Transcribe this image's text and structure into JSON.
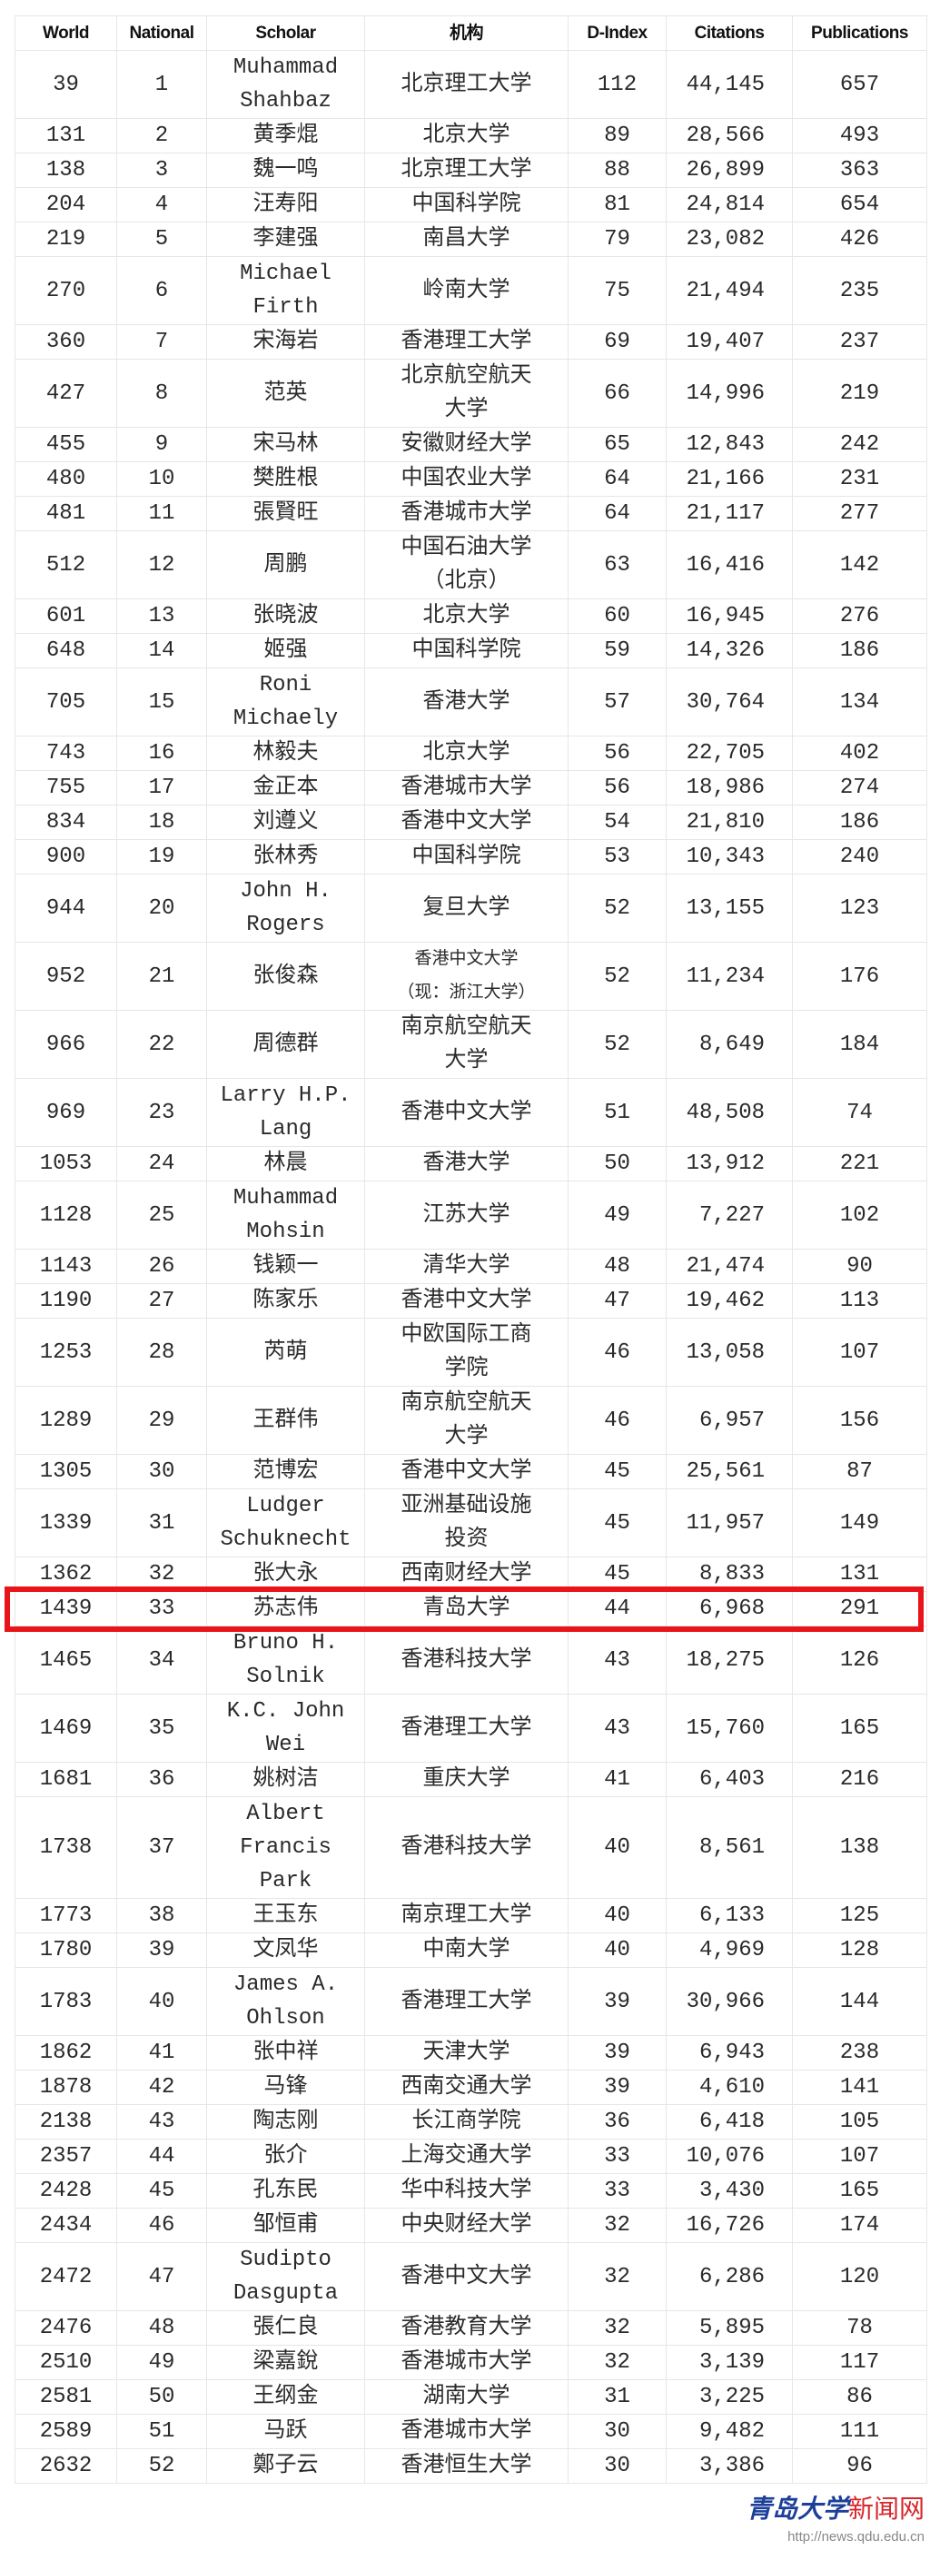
{
  "table": {
    "headers": [
      "World",
      "National",
      "Scholar",
      "机构",
      "D-Index",
      "Citations",
      "Publications"
    ],
    "rows": [
      [
        "39",
        "1",
        "Muhammad\nShahbaz",
        "北京理工大学",
        "112",
        "44,145",
        "657"
      ],
      [
        "131",
        "2",
        "黄季焜",
        "北京大学",
        "89",
        "28,566",
        "493"
      ],
      [
        "138",
        "3",
        "魏一鸣",
        "北京理工大学",
        "88",
        "26,899",
        "363"
      ],
      [
        "204",
        "4",
        "汪寿阳",
        "中国科学院",
        "81",
        "24,814",
        "654"
      ],
      [
        "219",
        "5",
        "李建强",
        "南昌大学",
        "79",
        "23,082",
        "426"
      ],
      [
        "270",
        "6",
        "Michael\nFirth",
        "岭南大学",
        "75",
        "21,494",
        "235"
      ],
      [
        "360",
        "7",
        "宋海岩",
        "香港理工大学",
        "69",
        "19,407",
        "237"
      ],
      [
        "427",
        "8",
        "范英",
        "北京航空航天\n大学",
        "66",
        "14,996",
        "219"
      ],
      [
        "455",
        "9",
        "宋马林",
        "安徽财经大学",
        "65",
        "12,843",
        "242"
      ],
      [
        "480",
        "10",
        "樊胜根",
        "中国农业大学",
        "64",
        "21,166",
        "231"
      ],
      [
        "481",
        "11",
        "張賢旺",
        "香港城市大学",
        "64",
        "21,117",
        "277"
      ],
      [
        "512",
        "12",
        "周鹏",
        "中国石油大学\n（北京）",
        "63",
        "16,416",
        "142"
      ],
      [
        "601",
        "13",
        "张晓波",
        "北京大学",
        "60",
        "16,945",
        "276"
      ],
      [
        "648",
        "14",
        "姬强",
        "中国科学院",
        "59",
        "14,326",
        "186"
      ],
      [
        "705",
        "15",
        "Roni\nMichaely",
        "香港大学",
        "57",
        "30,764",
        "134"
      ],
      [
        "743",
        "16",
        "林毅夫",
        "北京大学",
        "56",
        "22,705",
        "402"
      ],
      [
        "755",
        "17",
        "金正本",
        "香港城市大学",
        "56",
        "18,986",
        "274"
      ],
      [
        "834",
        "18",
        "刘遵义",
        "香港中文大学",
        "54",
        "21,810",
        "186"
      ],
      [
        "900",
        "19",
        "张林秀",
        "中国科学院",
        "53",
        "10,343",
        "240"
      ],
      [
        "944",
        "20",
        "John H.\nRogers",
        "复旦大学",
        "52",
        "13,155",
        "123"
      ],
      [
        "952",
        "21",
        "张俊森",
        "香港中文大学\n（现：浙江大学）",
        "52",
        "11,234",
        "176"
      ],
      [
        "966",
        "22",
        "周德群",
        "南京航空航天\n大学",
        "52",
        "8,649",
        "184"
      ],
      [
        "969",
        "23",
        "Larry H.P.\nLang",
        "香港中文大学",
        "51",
        "48,508",
        "74"
      ],
      [
        "1053",
        "24",
        "林晨",
        "香港大学",
        "50",
        "13,912",
        "221"
      ],
      [
        "1128",
        "25",
        "Muhammad\nMohsin",
        "江苏大学",
        "49",
        "7,227",
        "102"
      ],
      [
        "1143",
        "26",
        "钱颖一",
        "清华大学",
        "48",
        "21,474",
        "90"
      ],
      [
        "1190",
        "27",
        "陈家乐",
        "香港中文大学",
        "47",
        "19,462",
        "113"
      ],
      [
        "1253",
        "28",
        "芮萌",
        "中欧国际工商\n学院",
        "46",
        "13,058",
        "107"
      ],
      [
        "1289",
        "29",
        "王群伟",
        "南京航空航天\n大学",
        "46",
        "6,957",
        "156"
      ],
      [
        "1305",
        "30",
        "范博宏",
        "香港中文大学",
        "45",
        "25,561",
        "87"
      ],
      [
        "1339",
        "31",
        "Ludger\nSchuknecht",
        "亚洲基础设施\n投资",
        "45",
        "11,957",
        "149"
      ],
      [
        "1362",
        "32",
        "张大永",
        "西南财经大学",
        "45",
        "8,833",
        "131"
      ],
      [
        "1439",
        "33",
        "苏志伟",
        "青岛大学",
        "44",
        "6,968",
        "291"
      ],
      [
        "1465",
        "34",
        "Bruno H.\nSolnik",
        "香港科技大学",
        "43",
        "18,275",
        "126"
      ],
      [
        "1469",
        "35",
        "K.C. John\nWei",
        "香港理工大学",
        "43",
        "15,760",
        "165"
      ],
      [
        "1681",
        "36",
        "姚树洁",
        "重庆大学",
        "41",
        "6,403",
        "216"
      ],
      [
        "1738",
        "37",
        "Albert\nFrancis\nPark",
        "香港科技大学",
        "40",
        "8,561",
        "138"
      ],
      [
        "1773",
        "38",
        "王玉东",
        "南京理工大学",
        "40",
        "6,133",
        "125"
      ],
      [
        "1780",
        "39",
        "文凤华",
        "中南大学",
        "40",
        "4,969",
        "128"
      ],
      [
        "1783",
        "40",
        "James A.\nOhlson",
        "香港理工大学",
        "39",
        "30,966",
        "144"
      ],
      [
        "1862",
        "41",
        "张中祥",
        "天津大学",
        "39",
        "6,943",
        "238"
      ],
      [
        "1878",
        "42",
        "马锋",
        "西南交通大学",
        "39",
        "4,610",
        "141"
      ],
      [
        "2138",
        "43",
        "陶志刚",
        "长江商学院",
        "36",
        "6,418",
        "105"
      ],
      [
        "2357",
        "44",
        "张介",
        "上海交通大学",
        "33",
        "10,076",
        "107"
      ],
      [
        "2428",
        "45",
        "孔东民",
        "华中科技大学",
        "33",
        "3,430",
        "165"
      ],
      [
        "2434",
        "46",
        "邹恒甫",
        "中央财经大学",
        "32",
        "16,726",
        "174"
      ],
      [
        "2472",
        "47",
        "Sudipto\nDasgupta",
        "香港中文大学",
        "32",
        "6,286",
        "120"
      ],
      [
        "2476",
        "48",
        "張仁良",
        "香港教育大学",
        "32",
        "5,895",
        "78"
      ],
      [
        "2510",
        "49",
        "梁嘉銳",
        "香港城市大学",
        "32",
        "3,139",
        "117"
      ],
      [
        "2581",
        "50",
        "王纲金",
        "湖南大学",
        "31",
        "3,225",
        "86"
      ],
      [
        "2589",
        "51",
        "马跃",
        "香港城市大学",
        "30",
        "9,482",
        "111"
      ],
      [
        "2632",
        "52",
        "鄭子云",
        "香港恒生大学",
        "30",
        "3,386",
        "96"
      ]
    ],
    "highlighted_national_rank": "33",
    "highlight_color": "#e8141a"
  },
  "watermark": {
    "brand": "青岛大学",
    "brand_suffix": "新闻网",
    "url": "http://news.qdu.edu.cn",
    "brand_color": "#1d3f9a",
    "suffix_color": "#d8262a"
  }
}
